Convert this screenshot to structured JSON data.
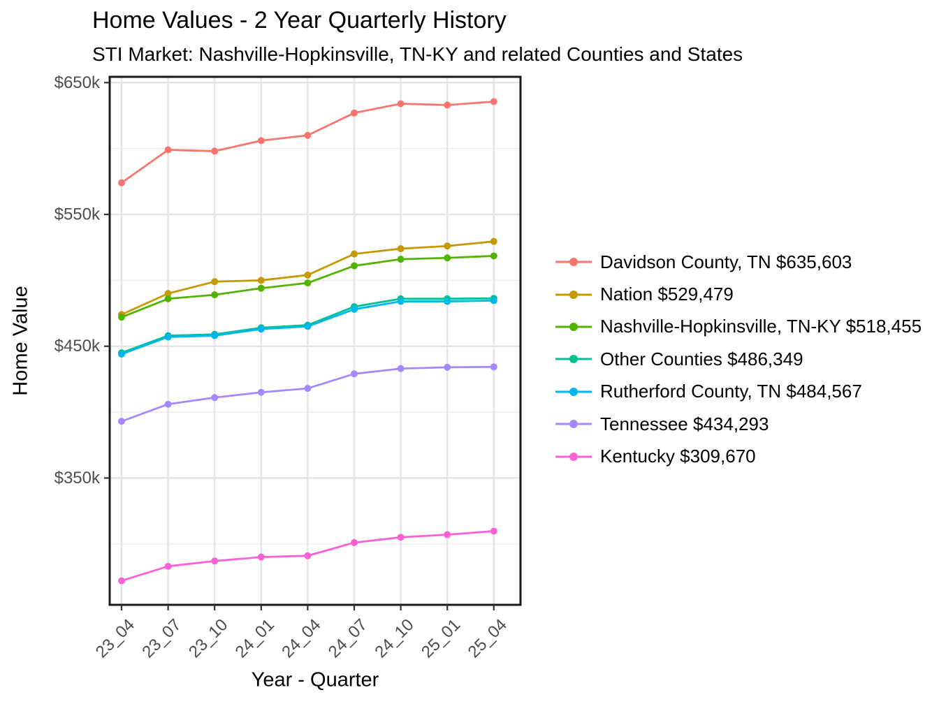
{
  "chart_data": {
    "type": "line",
    "title": "Home Values - 2 Year Quarterly History",
    "subtitle": "STI Market: Nashville-Hopkinsville, TN-KY and related Counties and States",
    "xlabel": "Year - Quarter",
    "ylabel": "Home Value",
    "x_categories": [
      "23_04",
      "23_07",
      "23_10",
      "24_01",
      "24_04",
      "24_07",
      "24_10",
      "25_01",
      "25_04"
    ],
    "y_axis": {
      "major_ticks_k": [
        350,
        450,
        550,
        650
      ],
      "major_tick_labels": [
        "$350k",
        "$450k",
        "$550k",
        "$650k"
      ],
      "minor_ticks_k": [
        300,
        400,
        500,
        600
      ],
      "ylim_k": [
        253,
        654
      ]
    },
    "unit": "USD thousands",
    "grid": true,
    "legend_position": "right",
    "series": [
      {
        "name": "Davidson County, TN",
        "legend_label": "Davidson County, TN $635,603",
        "latest_value": "$635,603",
        "color": "#F8766D",
        "values_k": [
          574,
          599,
          598,
          606,
          610,
          627,
          634,
          633,
          635.6
        ]
      },
      {
        "name": "Nation",
        "legend_label": "Nation $529,479",
        "latest_value": "$529,479",
        "color": "#C49A00",
        "values_k": [
          474,
          490,
          499,
          500,
          504,
          520,
          524,
          526,
          529.5
        ]
      },
      {
        "name": "Nashville-Hopkinsville, TN-KY",
        "legend_label": "Nashville-Hopkinsville, TN-KY $518,455",
        "latest_value": "$518,455",
        "color": "#53B400",
        "values_k": [
          472,
          486,
          489,
          494,
          498,
          511,
          516,
          517,
          518.5
        ]
      },
      {
        "name": "Other Counties",
        "legend_label": "Other Counties $486,349",
        "latest_value": "$486,349",
        "color": "#00C094",
        "values_k": [
          445,
          458,
          459,
          464,
          466,
          480,
          486,
          486,
          486.3
        ]
      },
      {
        "name": "Rutherford County, TN",
        "legend_label": "Rutherford County, TN $484,567",
        "latest_value": "$484,567",
        "color": "#00B6EB",
        "values_k": [
          444,
          457,
          458,
          463,
          465,
          478,
          484,
          484,
          484.6
        ]
      },
      {
        "name": "Tennessee",
        "legend_label": "Tennessee $434,293",
        "latest_value": "$434,293",
        "color": "#A58AFF",
        "values_k": [
          393,
          406,
          411,
          415,
          418,
          429,
          433,
          434,
          434.3
        ]
      },
      {
        "name": "Kentucky",
        "legend_label": "Kentucky $309,670",
        "latest_value": "$309,670",
        "color": "#FB61D7",
        "values_k": [
          272,
          283,
          287,
          290,
          291,
          301,
          305,
          307,
          309.7
        ]
      }
    ]
  }
}
